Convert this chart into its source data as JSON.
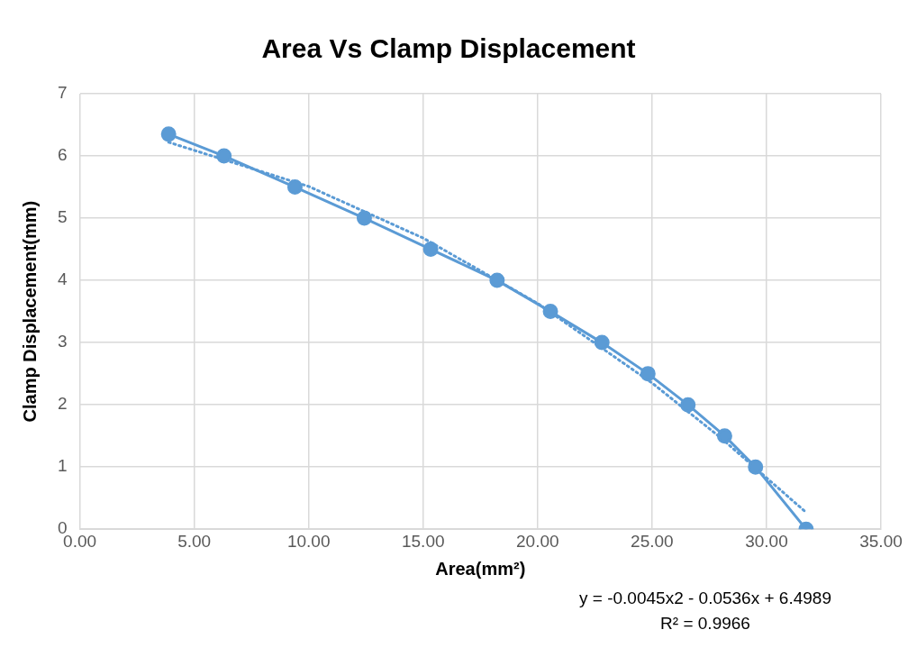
{
  "chart_data": {
    "type": "line",
    "title": "Area Vs Clamp Displacement",
    "xlabel": "Area(mm²)",
    "ylabel": "Clamp Displacement(mm)",
    "xlim": [
      0,
      35
    ],
    "xticks": [
      {
        "value": 0,
        "label": "0.00"
      },
      {
        "value": 5,
        "label": "5.00"
      },
      {
        "value": 10,
        "label": "10.00"
      },
      {
        "value": 15,
        "label": "15.00"
      },
      {
        "value": 20,
        "label": "20.00"
      },
      {
        "value": 25,
        "label": "25.00"
      },
      {
        "value": 30,
        "label": "30.00"
      },
      {
        "value": 35,
        "label": "35.00"
      }
    ],
    "ylim": [
      0,
      7
    ],
    "yticks": [
      0,
      1,
      2,
      3,
      4,
      5,
      6,
      7
    ],
    "grid": true,
    "legend": false,
    "series": [
      {
        "color": "#5b9bd5",
        "marker": "circle",
        "line_style": "solid",
        "x": [
          3.88,
          6.3,
          9.4,
          12.43,
          15.33,
          18.23,
          20.56,
          22.81,
          24.82,
          26.57,
          28.17,
          29.52,
          31.73
        ],
        "values": [
          6.35,
          6,
          5.5,
          5,
          4.5,
          4,
          3.5,
          3,
          2.5,
          2,
          1.5,
          1,
          0
        ]
      },
      {
        "color": "#5b9bd5",
        "marker": "none",
        "line_style": "dotted",
        "x": [
          3.88,
          10,
          15,
          20,
          25,
          28,
          31.73
        ],
        "values": [
          6.22,
          5.51,
          4.68,
          3.63,
          2.35,
          1.47,
          0.27
        ]
      }
    ],
    "annotations": [
      "y = -0.0045x2 - 0.0536x + 6.4989",
      "R² = 0.9966"
    ]
  }
}
